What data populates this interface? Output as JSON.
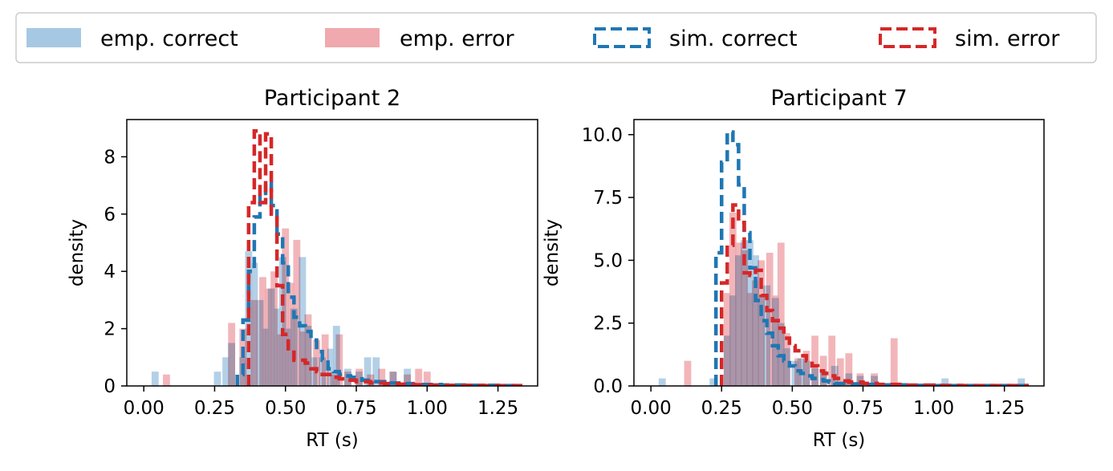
{
  "legend": {
    "entries": [
      {
        "label": "emp. correct",
        "kind": "fill",
        "color": "#a6c8e3"
      },
      {
        "label": "emp. error",
        "kind": "fill",
        "color": "#f0a9ae"
      },
      {
        "label": "sim. correct",
        "kind": "dashed",
        "color": "#1f77b4"
      },
      {
        "label": "sim. error",
        "kind": "dashed",
        "color": "#d62728"
      }
    ]
  },
  "colors": {
    "emp_correct": "#a6c8e3",
    "emp_error": "#f0a9ae",
    "sim_correct": "#1f77b4",
    "sim_error": "#d62728"
  },
  "chart_data": [
    {
      "type": "histogram",
      "title": "Participant 2",
      "xlabel": "RT (s)",
      "ylabel": "density",
      "xlim": [
        -0.06,
        1.39
      ],
      "ylim": [
        0,
        9.3
      ],
      "xticks": [
        0.0,
        0.25,
        0.5,
        0.75,
        1.0,
        1.25
      ],
      "xtick_labels": [
        "0.00",
        "0.25",
        "0.50",
        "0.75",
        "1.00",
        "1.25"
      ],
      "yticks": [
        0,
        2,
        4,
        6,
        8
      ],
      "ytick_labels": [
        "0",
        "2",
        "4",
        "6",
        "8"
      ],
      "bin_width": 0.025,
      "series": [
        {
          "name": "emp. correct",
          "style": "fill",
          "bars": [
            [
              0.04,
              0.5
            ],
            [
              0.26,
              0.5
            ],
            [
              0.29,
              1.0
            ],
            [
              0.31,
              1.5
            ],
            [
              0.35,
              1.0
            ],
            [
              0.37,
              4.7
            ],
            [
              0.39,
              4.3
            ],
            [
              0.41,
              3.0
            ],
            [
              0.43,
              2.0
            ],
            [
              0.45,
              3.4
            ],
            [
              0.47,
              2.7
            ],
            [
              0.49,
              4.5
            ],
            [
              0.51,
              2.0
            ],
            [
              0.53,
              2.7
            ],
            [
              0.56,
              4.5
            ],
            [
              0.58,
              2.1
            ],
            [
              0.6,
              1.0
            ],
            [
              0.63,
              1.0
            ],
            [
              0.66,
              1.3
            ],
            [
              0.68,
              2.1
            ],
            [
              0.72,
              0.6
            ],
            [
              0.76,
              0.5
            ],
            [
              0.79,
              1.0
            ],
            [
              0.82,
              1.0
            ],
            [
              0.88,
              0.5
            ],
            [
              0.93,
              0.6
            ]
          ]
        },
        {
          "name": "emp. error",
          "style": "fill",
          "bars": [
            [
              0.08,
              0.4
            ],
            [
              0.31,
              2.2
            ],
            [
              0.35,
              2.0
            ],
            [
              0.39,
              3.0
            ],
            [
              0.42,
              3.8
            ],
            [
              0.44,
              3.4
            ],
            [
              0.46,
              4.0
            ],
            [
              0.48,
              1.8
            ],
            [
              0.5,
              5.5
            ],
            [
              0.52,
              3.6
            ],
            [
              0.54,
              5.1
            ],
            [
              0.56,
              1.9
            ],
            [
              0.58,
              2.5
            ],
            [
              0.61,
              1.6
            ],
            [
              0.64,
              1.8
            ],
            [
              0.67,
              0.4
            ],
            [
              0.69,
              1.8
            ],
            [
              0.72,
              0.5
            ],
            [
              0.76,
              0.6
            ],
            [
              0.8,
              0.4
            ],
            [
              0.84,
              0.6
            ],
            [
              0.88,
              0.5
            ],
            [
              0.93,
              0.4
            ],
            [
              0.97,
              0.6
            ],
            [
              1.0,
              0.5
            ]
          ]
        },
        {
          "name": "sim. correct",
          "style": "step",
          "x": [
            0.33,
            0.35,
            0.37,
            0.39,
            0.41,
            0.43,
            0.45,
            0.47,
            0.49,
            0.51,
            0.53,
            0.55,
            0.57,
            0.59,
            0.61,
            0.63,
            0.65,
            0.67,
            0.69,
            0.71,
            0.73,
            0.75,
            0.77,
            0.8,
            0.85,
            0.9,
            0.95,
            1.0,
            1.05,
            1.1,
            1.15,
            1.2,
            1.25,
            1.3,
            1.33
          ],
          "y": [
            0.4,
            2.3,
            4.0,
            5.9,
            6.6,
            7.1,
            6.3,
            5.3,
            4.3,
            3.1,
            2.4,
            2.1,
            1.9,
            1.6,
            1.2,
            0.9,
            0.6,
            0.5,
            0.4,
            0.35,
            0.3,
            0.25,
            0.2,
            0.15,
            0.1,
            0.08,
            0.05,
            0.05,
            0.03,
            0.03,
            0.02,
            0.02,
            0.01,
            0.01
          ]
        },
        {
          "name": "sim. error",
          "style": "step",
          "x": [
            0.37,
            0.39,
            0.41,
            0.43,
            0.45,
            0.47,
            0.49,
            0.51,
            0.53,
            0.55,
            0.57,
            0.59,
            0.61,
            0.63,
            0.65,
            0.67,
            0.69,
            0.71,
            0.75,
            0.8,
            0.85,
            0.9,
            0.95,
            1.0,
            1.05,
            1.1,
            1.15,
            1.2,
            1.25,
            1.3,
            1.33
          ],
          "y": [
            6.4,
            8.9,
            6.4,
            8.8,
            6.0,
            3.5,
            1.8,
            1.3,
            0.9,
            0.9,
            0.8,
            0.6,
            0.5,
            0.4,
            0.4,
            0.3,
            0.25,
            0.2,
            0.15,
            0.1,
            0.08,
            0.06,
            0.04,
            0.03,
            0.02,
            0.02,
            0.02,
            0.01,
            0.01,
            0.01
          ]
        }
      ]
    },
    {
      "type": "histogram",
      "title": "Participant 7",
      "xlabel": "RT (s)",
      "ylabel": "density",
      "xlim": [
        -0.06,
        1.39
      ],
      "ylim": [
        0,
        10.6
      ],
      "xticks": [
        0.0,
        0.25,
        0.5,
        0.75,
        1.0,
        1.25
      ],
      "xtick_labels": [
        "0.00",
        "0.25",
        "0.50",
        "0.75",
        "1.00",
        "1.25"
      ],
      "yticks": [
        0,
        2.5,
        5,
        7.5,
        10
      ],
      "ytick_labels": [
        "0.0",
        "2.5",
        "5.0",
        "7.5",
        "10.0"
      ],
      "bin_width": 0.025,
      "series": [
        {
          "name": "emp. correct",
          "style": "fill",
          "bars": [
            [
              0.04,
              0.3
            ],
            [
              0.22,
              0.3
            ],
            [
              0.27,
              2.0
            ],
            [
              0.29,
              3.6
            ],
            [
              0.31,
              5.2
            ],
            [
              0.33,
              5.8
            ],
            [
              0.35,
              5.8
            ],
            [
              0.37,
              5.2
            ],
            [
              0.39,
              3.6
            ],
            [
              0.41,
              4.0
            ],
            [
              0.44,
              3.5
            ],
            [
              0.46,
              2.5
            ],
            [
              0.48,
              1.5
            ],
            [
              0.51,
              1.0
            ],
            [
              0.53,
              1.1
            ],
            [
              0.55,
              1.0
            ],
            [
              0.58,
              0.7
            ],
            [
              0.61,
              0.6
            ],
            [
              0.65,
              0.8
            ],
            [
              0.7,
              0.5
            ],
            [
              0.74,
              0.4
            ],
            [
              0.79,
              0.4
            ],
            [
              1.04,
              0.3
            ],
            [
              1.31,
              0.3
            ]
          ]
        },
        {
          "name": "emp. error",
          "style": "fill",
          "bars": [
            [
              0.13,
              1.0
            ],
            [
              0.27,
              3.7
            ],
            [
              0.29,
              6.9
            ],
            [
              0.31,
              5.7
            ],
            [
              0.33,
              5.4
            ],
            [
              0.35,
              3.7
            ],
            [
              0.37,
              4.2
            ],
            [
              0.39,
              5.0
            ],
            [
              0.42,
              5.3
            ],
            [
              0.44,
              3.6
            ],
            [
              0.46,
              5.7
            ],
            [
              0.48,
              2.1
            ],
            [
              0.52,
              1.1
            ],
            [
              0.55,
              1.4
            ],
            [
              0.58,
              2.0
            ],
            [
              0.61,
              1.2
            ],
            [
              0.64,
              2.0
            ],
            [
              0.67,
              1.1
            ],
            [
              0.7,
              1.3
            ],
            [
              0.74,
              0.5
            ],
            [
              0.79,
              0.5
            ],
            [
              0.86,
              1.9
            ]
          ]
        },
        {
          "name": "sim. correct",
          "style": "step",
          "x": [
            0.23,
            0.25,
            0.27,
            0.29,
            0.31,
            0.33,
            0.35,
            0.37,
            0.39,
            0.41,
            0.43,
            0.45,
            0.47,
            0.49,
            0.51,
            0.53,
            0.55,
            0.57,
            0.59,
            0.61,
            0.63,
            0.65,
            0.7,
            0.75,
            0.8,
            0.9,
            1.0,
            1.1,
            1.2,
            1.3,
            1.33
          ],
          "y": [
            5.3,
            8.9,
            10.1,
            9.6,
            8.0,
            6.1,
            4.7,
            3.4,
            2.6,
            2.1,
            1.6,
            1.2,
            1.0,
            0.8,
            0.6,
            0.5,
            0.4,
            0.3,
            0.25,
            0.2,
            0.15,
            0.1,
            0.08,
            0.06,
            0.04,
            0.02,
            0.01,
            0.01,
            0.01,
            0.01
          ]
        },
        {
          "name": "sim. error",
          "style": "step",
          "x": [
            0.25,
            0.27,
            0.29,
            0.31,
            0.33,
            0.35,
            0.37,
            0.39,
            0.41,
            0.43,
            0.45,
            0.47,
            0.49,
            0.51,
            0.53,
            0.55,
            0.57,
            0.59,
            0.61,
            0.63,
            0.65,
            0.67,
            0.7,
            0.75,
            0.8,
            0.9,
            1.0,
            1.1,
            1.2,
            1.3,
            1.33
          ],
          "y": [
            4.1,
            5.6,
            7.2,
            6.5,
            4.5,
            4.4,
            4.6,
            3.6,
            3.0,
            2.6,
            2.3,
            1.9,
            1.6,
            1.4,
            1.2,
            1.0,
            0.8,
            0.6,
            0.5,
            0.4,
            0.3,
            0.2,
            0.15,
            0.1,
            0.06,
            0.03,
            0.02,
            0.01,
            0.01,
            0.01
          ]
        }
      ]
    }
  ]
}
